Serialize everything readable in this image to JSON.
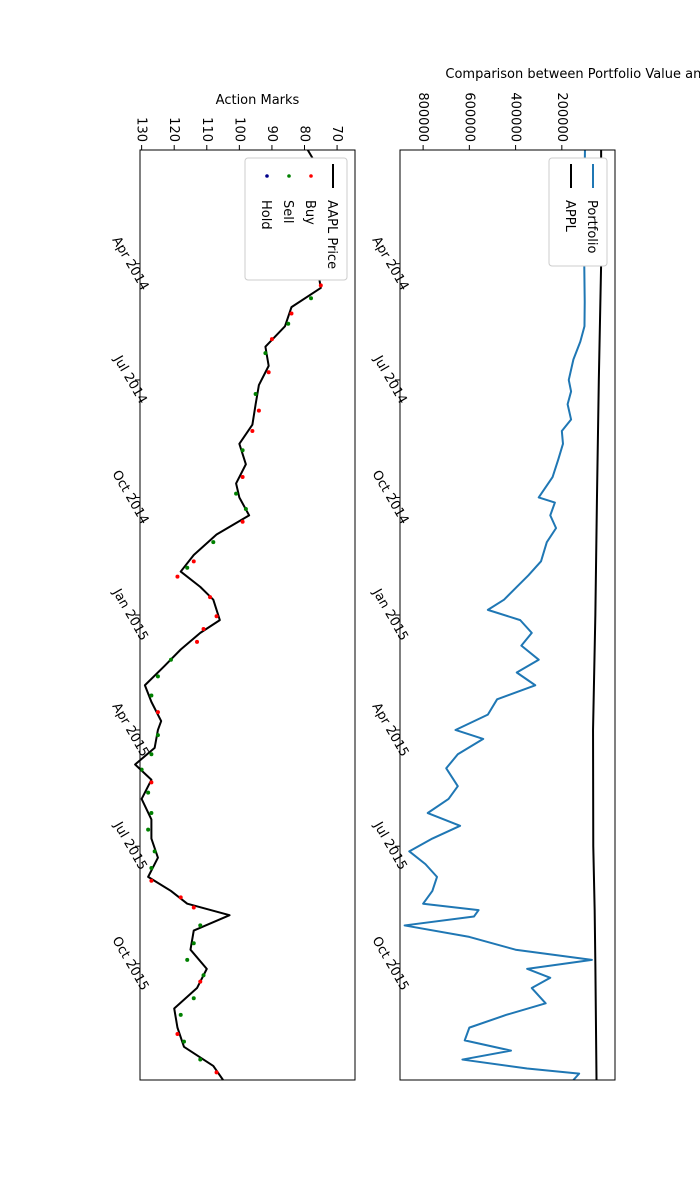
{
  "chart_data": [
    {
      "type": "line",
      "title": "Comparison between Portfolio Value and Stock Value",
      "xlabel": "",
      "ylabel": "",
      "x_range": [
        "2014-01-02",
        "2015-12-31"
      ],
      "x_ticks": [
        {
          "date": "2014-04-01",
          "label": "Apr 2014"
        },
        {
          "date": "2014-07-01",
          "label": "Jul 2014"
        },
        {
          "date": "2014-10-01",
          "label": "Oct 2014"
        },
        {
          "date": "2015-01-01",
          "label": "Jan 2015"
        },
        {
          "date": "2015-04-01",
          "label": "Apr 2015"
        },
        {
          "date": "2015-07-01",
          "label": "Jul 2015"
        },
        {
          "date": "2015-10-01",
          "label": "Oct 2015"
        }
      ],
      "y_range": [
        -30000,
        900000
      ],
      "y_ticks": [
        200000,
        400000,
        600000,
        800000
      ],
      "legend": {
        "placement": "top-right",
        "entries": [
          "Portfolio",
          "APPL"
        ]
      },
      "series": [
        {
          "name": "Portfolio",
          "color": "#1f77b4",
          "points": [
            [
              "2014-01-02",
              100000
            ],
            [
              "2014-02-01",
              102000
            ],
            [
              "2014-03-01",
              98000
            ],
            [
              "2014-04-01",
              103000
            ],
            [
              "2014-05-01",
              101000
            ],
            [
              "2014-05-20",
              102000
            ],
            [
              "2014-06-01",
              120000
            ],
            [
              "2014-06-15",
              150000
            ],
            [
              "2014-07-01",
              170000
            ],
            [
              "2014-07-10",
              160000
            ],
            [
              "2014-07-20",
              175000
            ],
            [
              "2014-08-01",
              160000
            ],
            [
              "2014-08-10",
              200000
            ],
            [
              "2014-08-20",
              195000
            ],
            [
              "2014-09-01",
              215000
            ],
            [
              "2014-09-15",
              240000
            ],
            [
              "2014-10-01",
              300000
            ],
            [
              "2014-10-05",
              230000
            ],
            [
              "2014-10-15",
              250000
            ],
            [
              "2014-10-25",
              225000
            ],
            [
              "2014-11-05",
              265000
            ],
            [
              "2014-11-20",
              290000
            ],
            [
              "2014-12-01",
              345000
            ],
            [
              "2014-12-10",
              395000
            ],
            [
              "2014-12-20",
              450000
            ],
            [
              "2014-12-28",
              520000
            ],
            [
              "2015-01-05",
              380000
            ],
            [
              "2015-01-15",
              330000
            ],
            [
              "2015-01-25",
              375000
            ],
            [
              "2015-02-05",
              300000
            ],
            [
              "2015-02-15",
              395000
            ],
            [
              "2015-02-25",
              315000
            ],
            [
              "2015-03-08",
              480000
            ],
            [
              "2015-03-20",
              520000
            ],
            [
              "2015-04-01",
              660000
            ],
            [
              "2015-04-08",
              540000
            ],
            [
              "2015-04-20",
              650000
            ],
            [
              "2015-05-01",
              700000
            ],
            [
              "2015-05-15",
              650000
            ],
            [
              "2015-05-25",
              690000
            ],
            [
              "2015-06-05",
              780000
            ],
            [
              "2015-06-15",
              640000
            ],
            [
              "2015-06-25",
              760000
            ],
            [
              "2015-07-05",
              860000
            ],
            [
              "2015-07-15",
              790000
            ],
            [
              "2015-07-25",
              740000
            ],
            [
              "2015-08-05",
              760000
            ],
            [
              "2015-08-15",
              800000
            ],
            [
              "2015-08-20",
              560000
            ],
            [
              "2015-08-25",
              580000
            ],
            [
              "2015-09-01",
              880000
            ],
            [
              "2015-09-10",
              600000
            ],
            [
              "2015-09-20",
              400000
            ],
            [
              "2015-09-28",
              70000
            ],
            [
              "2015-10-05",
              350000
            ],
            [
              "2015-10-12",
              250000
            ],
            [
              "2015-10-20",
              330000
            ],
            [
              "2015-11-01",
              270000
            ],
            [
              "2015-11-10",
              440000
            ],
            [
              "2015-11-20",
              600000
            ],
            [
              "2015-11-30",
              620000
            ],
            [
              "2015-12-08",
              420000
            ],
            [
              "2015-12-15",
              630000
            ],
            [
              "2015-12-22",
              350000
            ],
            [
              "2015-12-26",
              125000
            ],
            [
              "2015-12-31",
              150000
            ]
          ]
        },
        {
          "name": "APPL",
          "color": "#000000",
          "points": [
            [
              "2014-01-02",
              30000
            ],
            [
              "2014-04-01",
              30000
            ],
            [
              "2014-07-01",
              40000
            ],
            [
              "2014-10-01",
              48000
            ],
            [
              "2015-01-01",
              55000
            ],
            [
              "2015-04-01",
              65000
            ],
            [
              "2015-07-01",
              64000
            ],
            [
              "2015-08-20",
              58000
            ],
            [
              "2015-10-01",
              55000
            ],
            [
              "2015-12-31",
              50000
            ]
          ]
        }
      ]
    },
    {
      "type": "line",
      "title": "Action Marks",
      "xlabel": "",
      "ylabel": "",
      "x_range": [
        "2014-01-02",
        "2015-12-31"
      ],
      "x_ticks": [
        {
          "date": "2014-04-01",
          "label": "Apr 2014"
        },
        {
          "date": "2014-07-01",
          "label": "Jul 2014"
        },
        {
          "date": "2014-10-01",
          "label": "Oct 2014"
        },
        {
          "date": "2015-01-01",
          "label": "Jan 2015"
        },
        {
          "date": "2015-04-01",
          "label": "Apr 2015"
        },
        {
          "date": "2015-07-01",
          "label": "Jul 2015"
        },
        {
          "date": "2015-10-01",
          "label": "Oct 2015"
        }
      ],
      "y_range": [
        64.5,
        130.5
      ],
      "y_ticks": [
        70,
        80,
        90,
        100,
        110,
        120,
        130
      ],
      "legend": {
        "placement": "top-right",
        "entries": [
          "AAPL Price",
          "Buy",
          "Sell",
          "Hold"
        ]
      },
      "series": [
        {
          "name": "AAPL Price",
          "color": "#000000",
          "points": [
            [
              "2014-01-02",
              79
            ],
            [
              "2014-01-15",
              76
            ],
            [
              "2014-01-28",
              71
            ],
            [
              "2014-02-10",
              76
            ],
            [
              "2014-02-25",
              75
            ],
            [
              "2014-03-10",
              76
            ],
            [
              "2014-03-25",
              77
            ],
            [
              "2014-04-05",
              76
            ],
            [
              "2014-04-20",
              75
            ],
            [
              "2014-05-05",
              84
            ],
            [
              "2014-05-20",
              86
            ],
            [
              "2014-06-05",
              92
            ],
            [
              "2014-06-20",
              91
            ],
            [
              "2014-07-05",
              94
            ],
            [
              "2014-07-20",
              95
            ],
            [
              "2014-08-05",
              96
            ],
            [
              "2014-08-20",
              100
            ],
            [
              "2014-09-05",
              98
            ],
            [
              "2014-09-20",
              101
            ],
            [
              "2014-10-01",
              100
            ],
            [
              "2014-10-15",
              97
            ],
            [
              "2014-10-30",
              107
            ],
            [
              "2014-11-15",
              114
            ],
            [
              "2014-11-28",
              118
            ],
            [
              "2014-12-10",
              112
            ],
            [
              "2014-12-20",
              108
            ],
            [
              "2015-01-05",
              106
            ],
            [
              "2015-01-15",
              112
            ],
            [
              "2015-01-28",
              118
            ],
            [
              "2015-02-10",
              123
            ],
            [
              "2015-02-25",
              129
            ],
            [
              "2015-03-10",
              127
            ],
            [
              "2015-03-25",
              124
            ],
            [
              "2015-04-01",
              125
            ],
            [
              "2015-04-15",
              126
            ],
            [
              "2015-04-28",
              132
            ],
            [
              "2015-05-10",
              127
            ],
            [
              "2015-05-25",
              130
            ],
            [
              "2015-06-10",
              127
            ],
            [
              "2015-06-25",
              127
            ],
            [
              "2015-07-10",
              125
            ],
            [
              "2015-07-25",
              128
            ],
            [
              "2015-08-05",
              121
            ],
            [
              "2015-08-15",
              116
            ],
            [
              "2015-08-24",
              103
            ],
            [
              "2015-09-05",
              114
            ],
            [
              "2015-09-20",
              115
            ],
            [
              "2015-10-05",
              110
            ],
            [
              "2015-10-20",
              113
            ],
            [
              "2015-11-05",
              120
            ],
            [
              "2015-11-20",
              119
            ],
            [
              "2015-12-05",
              117
            ],
            [
              "2015-12-20",
              108
            ],
            [
              "2015-12-31",
              105
            ]
          ]
        },
        {
          "name": "Buy",
          "color": "#ff0000",
          "points": [
            [
              "2014-02-20",
              75
            ],
            [
              "2014-03-05",
              76
            ],
            [
              "2014-04-18",
              75
            ],
            [
              "2014-05-10",
              84
            ],
            [
              "2014-05-30",
              90
            ],
            [
              "2014-06-25",
              91
            ],
            [
              "2014-07-25",
              94
            ],
            [
              "2014-08-10",
              96
            ],
            [
              "2014-09-15",
              99
            ],
            [
              "2014-10-20",
              99
            ],
            [
              "2014-11-20",
              114
            ],
            [
              "2014-12-02",
              119
            ],
            [
              "2014-12-18",
              109
            ],
            [
              "2015-01-02",
              107
            ],
            [
              "2015-01-12",
              111
            ],
            [
              "2015-01-22",
              113
            ],
            [
              "2015-03-18",
              125
            ],
            [
              "2015-05-12",
              127
            ],
            [
              "2015-07-28",
              127
            ],
            [
              "2015-08-10",
              118
            ],
            [
              "2015-08-18",
              114
            ],
            [
              "2015-10-15",
              112
            ],
            [
              "2015-11-25",
              119
            ],
            [
              "2015-12-25",
              107
            ]
          ]
        },
        {
          "name": "Sell",
          "color": "#008000",
          "points": [
            [
              "2014-01-12",
              77
            ],
            [
              "2014-01-24",
              73
            ],
            [
              "2014-02-05",
              75
            ],
            [
              "2014-03-18",
              77
            ],
            [
              "2014-04-28",
              78
            ],
            [
              "2014-05-18",
              85
            ],
            [
              "2014-06-10",
              92
            ],
            [
              "2014-07-12",
              95
            ],
            [
              "2014-08-25",
              99
            ],
            [
              "2014-09-28",
              101
            ],
            [
              "2014-10-10",
              98
            ],
            [
              "2014-11-05",
              108
            ],
            [
              "2014-11-25",
              116
            ],
            [
              "2015-02-05",
              121
            ],
            [
              "2015-02-18",
              125
            ],
            [
              "2015-03-05",
              127
            ],
            [
              "2015-04-05",
              125
            ],
            [
              "2015-04-20",
              127
            ],
            [
              "2015-05-02",
              130
            ],
            [
              "2015-05-20",
              128
            ],
            [
              "2015-06-05",
              127
            ],
            [
              "2015-06-18",
              128
            ],
            [
              "2015-07-05",
              126
            ],
            [
              "2015-07-18",
              127
            ],
            [
              "2015-09-01",
              112
            ],
            [
              "2015-09-15",
              114
            ],
            [
              "2015-09-28",
              116
            ],
            [
              "2015-10-10",
              111
            ],
            [
              "2015-10-28",
              114
            ],
            [
              "2015-11-10",
              118
            ],
            [
              "2015-12-01",
              117
            ],
            [
              "2015-12-15",
              112
            ]
          ]
        },
        {
          "name": "Hold",
          "color": "#00008b",
          "points": []
        }
      ]
    }
  ]
}
